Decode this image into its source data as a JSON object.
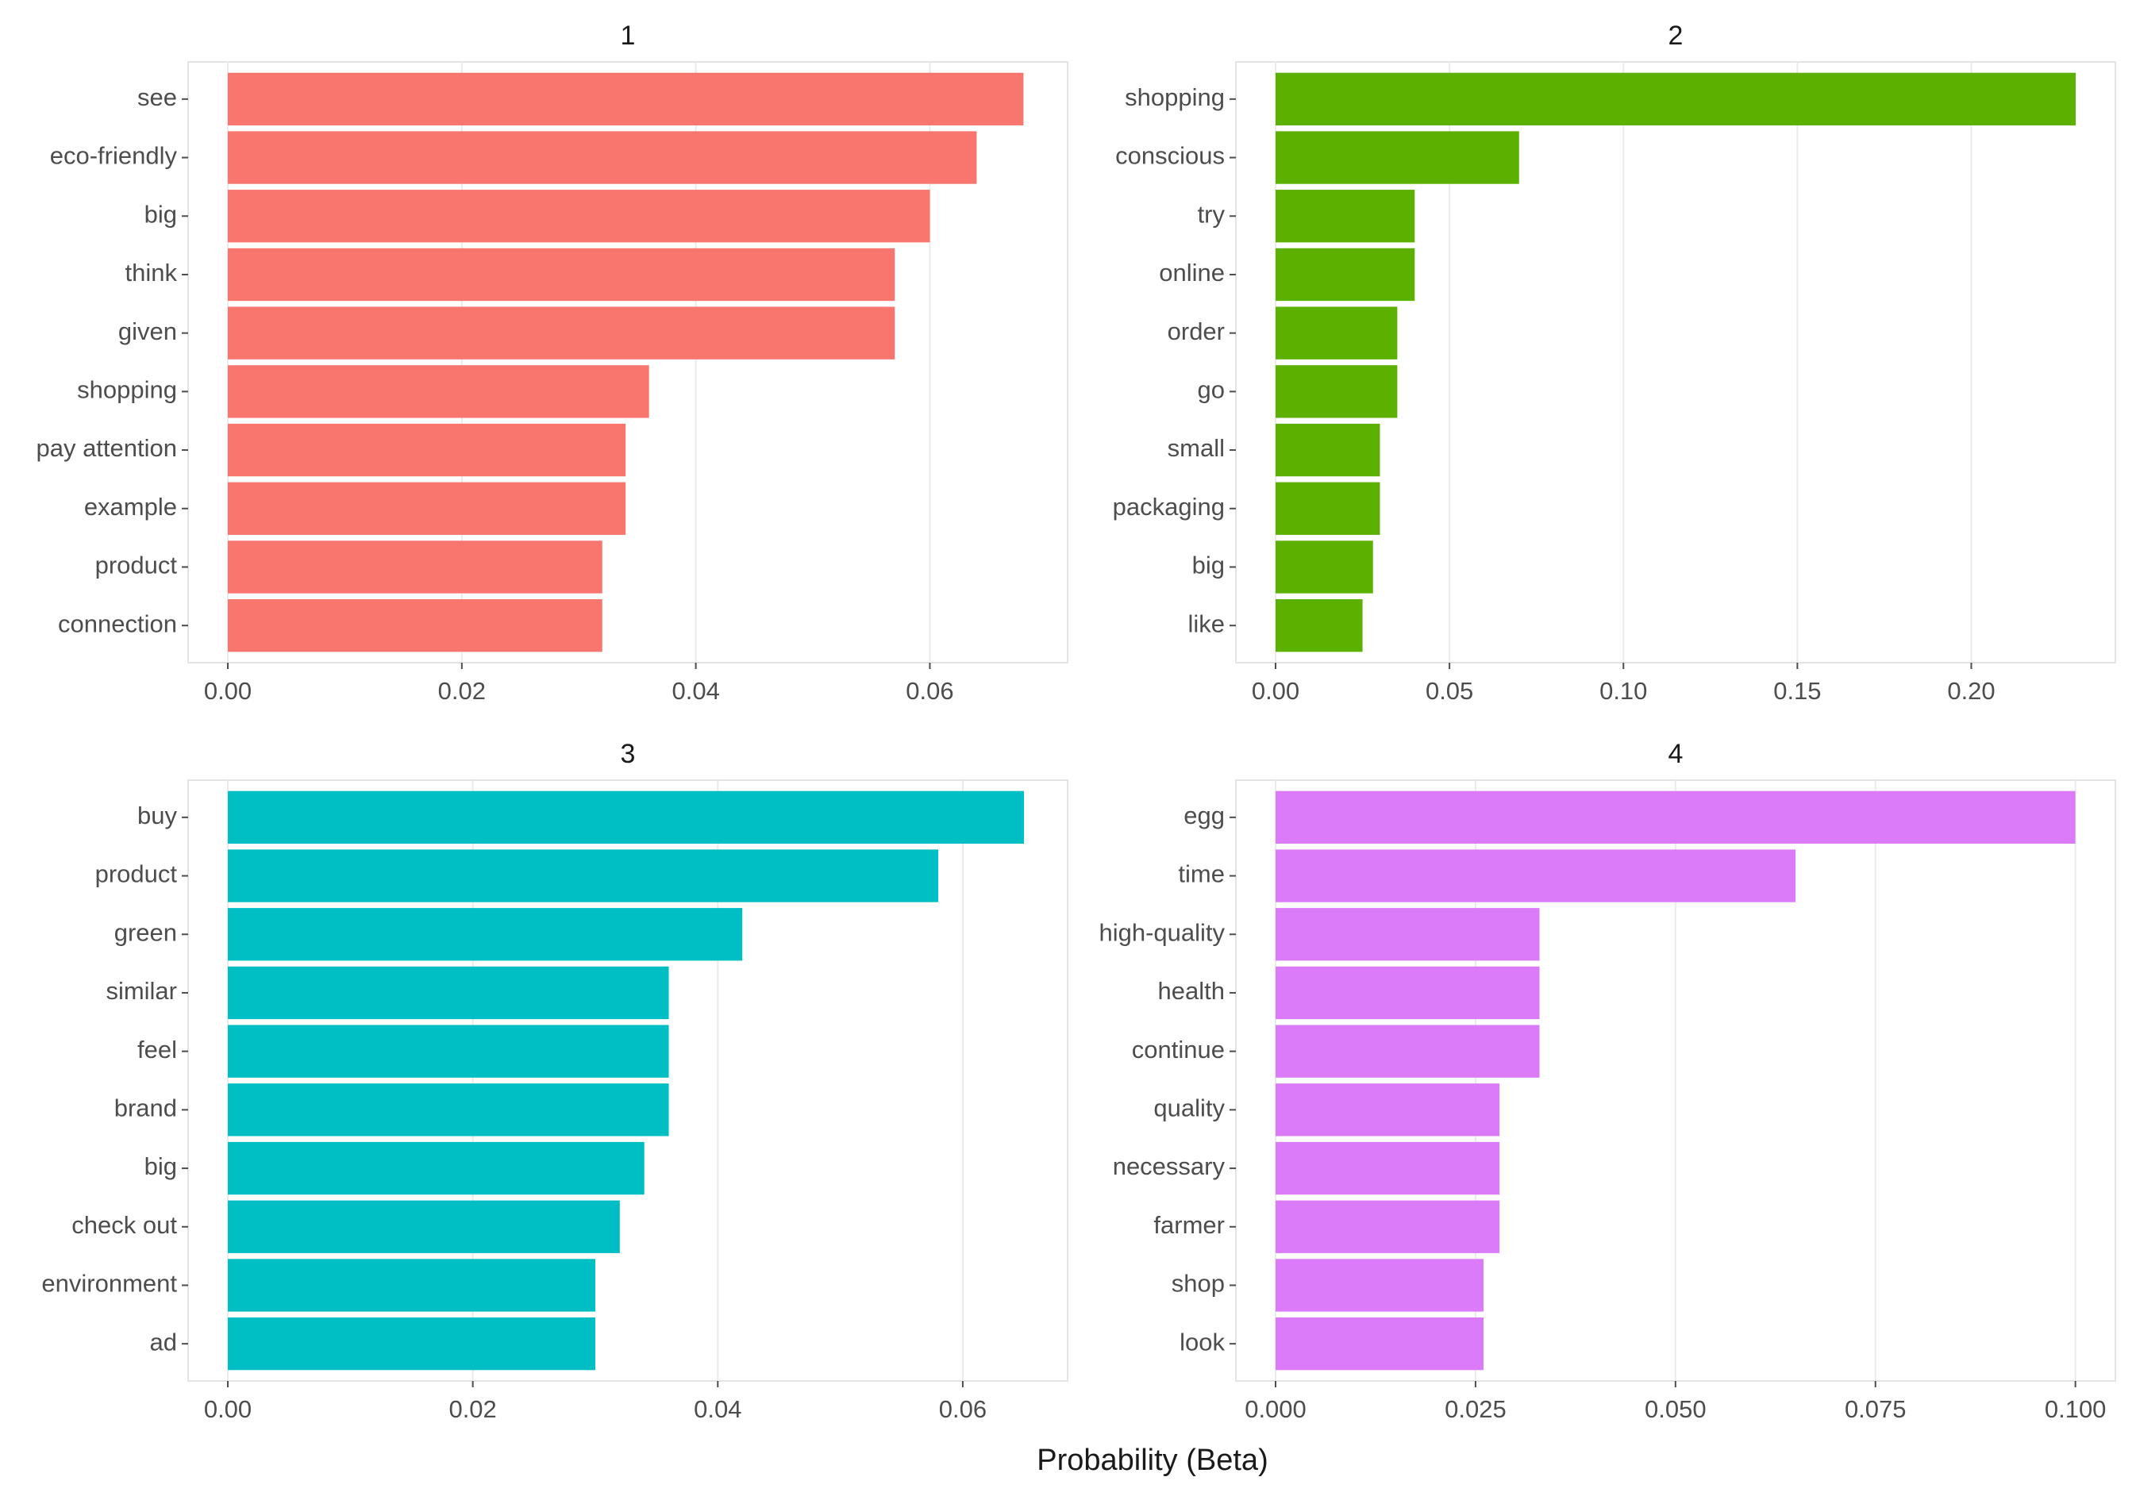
{
  "chart_data": {
    "xlabel": "Probability (Beta)",
    "panels": [
      {
        "title": "1",
        "type": "bar",
        "orientation": "horizontal",
        "color": "#F8766D",
        "xlim": [
          0,
          0.0715
        ],
        "ticks": [
          0.0,
          0.02,
          0.04,
          0.06
        ],
        "tick_labels": [
          "0.00",
          "0.02",
          "0.04",
          "0.06"
        ],
        "categories": [
          "see",
          "eco-friendly",
          "big",
          "think",
          "given",
          "shopping",
          "pay attention",
          "example",
          "product",
          "connection"
        ],
        "values": [
          0.068,
          0.064,
          0.06,
          0.057,
          0.057,
          0.036,
          0.034,
          0.034,
          0.032,
          0.032
        ]
      },
      {
        "title": "2",
        "type": "bar",
        "orientation": "horizontal",
        "color": "#5BB000",
        "xlim": [
          0,
          0.2405
        ],
        "ticks": [
          0.0,
          0.05,
          0.1,
          0.15,
          0.2
        ],
        "tick_labels": [
          "0.00",
          "0.05",
          "0.10",
          "0.15",
          "0.20"
        ],
        "categories": [
          "shopping",
          "conscious",
          "try",
          "online",
          "order",
          "go",
          "small",
          "packaging",
          "big",
          "like"
        ],
        "values": [
          0.23,
          0.07,
          0.04,
          0.04,
          0.035,
          0.035,
          0.03,
          0.03,
          0.028,
          0.025
        ]
      },
      {
        "title": "3",
        "type": "bar",
        "orientation": "horizontal",
        "color": "#00BFC4",
        "xlim": [
          0,
          0.0683
        ],
        "ticks": [
          0.0,
          0.02,
          0.04,
          0.06
        ],
        "tick_labels": [
          "0.00",
          "0.02",
          "0.04",
          "0.06"
        ],
        "categories": [
          "buy",
          "product",
          "green",
          "similar",
          "feel",
          "brand",
          "big",
          "check out",
          "environment",
          "ad"
        ],
        "values": [
          0.065,
          0.058,
          0.042,
          0.036,
          0.036,
          0.036,
          0.034,
          0.032,
          0.03,
          0.03
        ]
      },
      {
        "title": "4",
        "type": "bar",
        "orientation": "horizontal",
        "color": "#DC7BFA",
        "xlim": [
          0,
          0.1046
        ],
        "ticks": [
          0.0,
          0.025,
          0.05,
          0.075,
          0.1
        ],
        "tick_labels": [
          "0.000",
          "0.025",
          "0.050",
          "0.075",
          "0.100"
        ],
        "categories": [
          "egg",
          "time",
          "high-quality",
          "health",
          "continue",
          "quality",
          "necessary",
          "farmer",
          "shop",
          "look"
        ],
        "values": [
          0.1,
          0.065,
          0.033,
          0.033,
          0.033,
          0.028,
          0.028,
          0.028,
          0.026,
          0.026
        ]
      }
    ]
  }
}
